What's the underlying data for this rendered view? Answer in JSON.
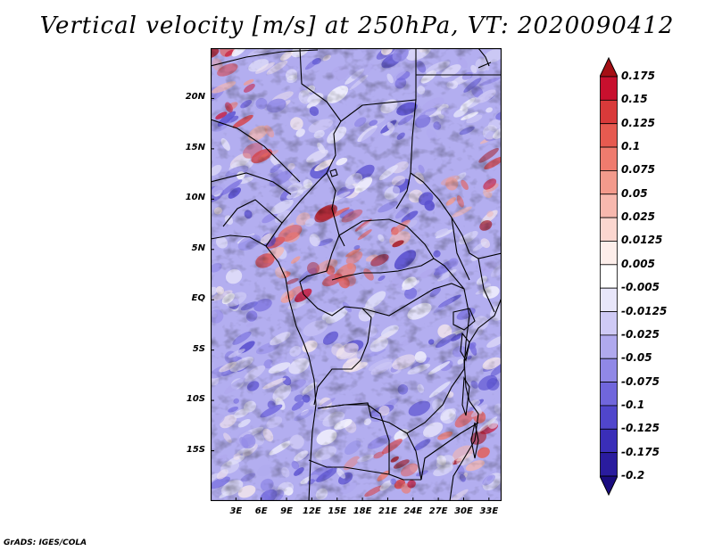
{
  "title": "Vertical velocity [m/s] at 250hPa, VT: 2020090412",
  "credit": "GrADS: IGES/COLA",
  "map": {
    "lon_min": 0,
    "lon_max": 34.5,
    "lat_min": -20,
    "lat_max": 25,
    "lat_ticks": [
      {
        "value": 20,
        "label": "20N"
      },
      {
        "value": 15,
        "label": "15N"
      },
      {
        "value": 10,
        "label": "10N"
      },
      {
        "value": 5,
        "label": "5N"
      },
      {
        "value": 0,
        "label": "EQ"
      },
      {
        "value": -5,
        "label": "5S"
      },
      {
        "value": -10,
        "label": "10S"
      },
      {
        "value": -15,
        "label": "15S"
      }
    ],
    "lon_ticks": [
      {
        "value": 3,
        "label": "3E"
      },
      {
        "value": 6,
        "label": "6E"
      },
      {
        "value": 9,
        "label": "9E"
      },
      {
        "value": 12,
        "label": "12E"
      },
      {
        "value": 15,
        "label": "15E"
      },
      {
        "value": 18,
        "label": "18E"
      },
      {
        "value": 21,
        "label": "21E"
      },
      {
        "value": 24,
        "label": "24E"
      },
      {
        "value": 27,
        "label": "27E"
      },
      {
        "value": 30,
        "label": "30E"
      },
      {
        "value": 33,
        "label": "33E"
      }
    ]
  },
  "colorbar": {
    "levels": [
      "0.175",
      "0.15",
      "0.125",
      "0.1",
      "0.075",
      "0.05",
      "0.025",
      "0.0125",
      "0.005",
      "-0.005",
      "-0.0125",
      "-0.025",
      "-0.05",
      "-0.075",
      "-0.1",
      "-0.125",
      "-0.175",
      "-0.2"
    ],
    "colors": [
      "#a50f15",
      "#c8102e",
      "#d93a3a",
      "#e65a50",
      "#ef7b6e",
      "#f39a8c",
      "#f7b8ae",
      "#fbd6cf",
      "#fdeeea",
      "#ffffff",
      "#e8e6fa",
      "#cfcaf5",
      "#b0a9ee",
      "#9088e6",
      "#7066dc",
      "#5046cc",
      "#3a2eb8",
      "#2a1c9e",
      "#1a0c80"
    ]
  }
}
